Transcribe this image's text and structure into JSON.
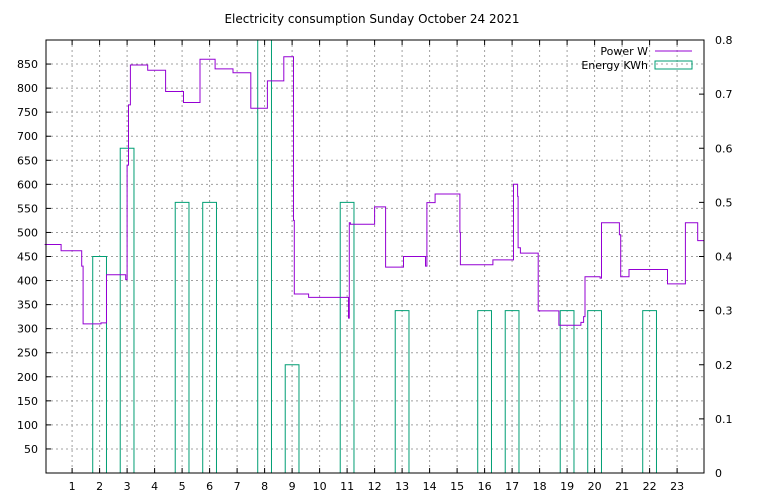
{
  "chart_data": {
    "type": "line",
    "title": "Electricity consumption Sunday October 24 2021",
    "xlabel": "",
    "ylabel": "",
    "xlim": [
      0,
      23.75
    ],
    "ylim": [
      0,
      900
    ],
    "y2lim": [
      0,
      0.8
    ],
    "x_ticks": [
      1,
      2,
      3,
      4,
      5,
      6,
      7,
      8,
      9,
      10,
      11,
      12,
      13,
      14,
      15,
      16,
      17,
      18,
      19,
      20,
      21,
      22,
      23
    ],
    "y_ticks": [
      50,
      100,
      150,
      200,
      250,
      300,
      350,
      400,
      450,
      500,
      550,
      600,
      650,
      700,
      750,
      800,
      850
    ],
    "y2_ticks": [
      0,
      0.1,
      0.2,
      0.3,
      0.4,
      0.5,
      0.6,
      0.7,
      0.8
    ],
    "grid": true,
    "legend_position": "top-right",
    "series": [
      {
        "name": "Power W",
        "type": "step-line",
        "axis": "left",
        "color": "#9400d3",
        "points": [
          [
            0,
            475
          ],
          [
            0.6,
            475
          ],
          [
            0.6,
            462
          ],
          [
            1.35,
            462
          ],
          [
            1.35,
            430
          ],
          [
            1.4,
            430
          ],
          [
            1.4,
            310
          ],
          [
            2.05,
            310
          ],
          [
            2.05,
            312
          ],
          [
            2.25,
            312
          ],
          [
            2.25,
            412
          ],
          [
            2.95,
            412
          ],
          [
            2.95,
            402
          ],
          [
            3.0,
            402
          ],
          [
            3.0,
            640
          ],
          [
            3.05,
            640
          ],
          [
            3.05,
            765
          ],
          [
            3.12,
            765
          ],
          [
            3.12,
            848
          ],
          [
            3.75,
            848
          ],
          [
            3.75,
            837
          ],
          [
            4.4,
            837
          ],
          [
            4.4,
            793
          ],
          [
            5.05,
            793
          ],
          [
            5.05,
            770
          ],
          [
            5.65,
            770
          ],
          [
            5.65,
            860
          ],
          [
            6.2,
            860
          ],
          [
            6.2,
            840
          ],
          [
            6.85,
            840
          ],
          [
            6.85,
            832
          ],
          [
            7.5,
            832
          ],
          [
            7.5,
            758
          ],
          [
            8.1,
            758
          ],
          [
            8.1,
            815
          ],
          [
            8.7,
            815
          ],
          [
            8.7,
            865
          ],
          [
            9.05,
            865
          ],
          [
            9.05,
            525
          ],
          [
            9.08,
            525
          ],
          [
            9.08,
            372
          ],
          [
            9.6,
            372
          ],
          [
            9.6,
            365
          ],
          [
            11.05,
            365
          ],
          [
            11.05,
            322
          ],
          [
            11.08,
            322
          ],
          [
            11.08,
            520
          ],
          [
            11.12,
            520
          ],
          [
            11.12,
            517
          ],
          [
            12.0,
            517
          ],
          [
            12.0,
            553
          ],
          [
            12.4,
            553
          ],
          [
            12.4,
            428
          ],
          [
            13.05,
            428
          ],
          [
            13.05,
            450
          ],
          [
            13.85,
            450
          ],
          [
            13.85,
            430
          ],
          [
            13.9,
            430
          ],
          [
            13.9,
            562
          ],
          [
            14.2,
            562
          ],
          [
            14.2,
            580
          ],
          [
            15.1,
            580
          ],
          [
            15.1,
            500
          ],
          [
            15.12,
            500
          ],
          [
            15.12,
            433
          ],
          [
            16.3,
            433
          ],
          [
            16.3,
            443
          ],
          [
            17.05,
            443
          ],
          [
            17.05,
            600
          ],
          [
            17.2,
            600
          ],
          [
            17.2,
            575
          ],
          [
            17.22,
            575
          ],
          [
            17.22,
            468
          ],
          [
            17.3,
            468
          ],
          [
            17.3,
            457
          ],
          [
            17.95,
            457
          ],
          [
            17.95,
            337
          ],
          [
            18.7,
            337
          ],
          [
            18.7,
            307
          ],
          [
            19.5,
            307
          ],
          [
            19.5,
            313
          ],
          [
            19.6,
            313
          ],
          [
            19.6,
            325
          ],
          [
            19.65,
            325
          ],
          [
            19.65,
            408
          ],
          [
            20.2,
            408
          ],
          [
            20.2,
            405
          ],
          [
            20.25,
            405
          ],
          [
            20.25,
            520
          ],
          [
            20.9,
            520
          ],
          [
            20.9,
            495
          ],
          [
            20.95,
            495
          ],
          [
            20.95,
            408
          ],
          [
            21.25,
            408
          ],
          [
            21.25,
            423
          ],
          [
            22.65,
            423
          ],
          [
            22.65,
            393
          ],
          [
            23.3,
            393
          ],
          [
            23.3,
            520
          ],
          [
            23.75,
            520
          ],
          [
            23.75,
            483
          ],
          [
            24.4,
            483
          ]
        ]
      },
      {
        "name": "Energy KWh",
        "type": "bar",
        "axis": "right",
        "color": "#009e73",
        "bar_width": 0.5,
        "bars": [
          {
            "x": 1.75,
            "value": 0.4
          },
          {
            "x": 2.75,
            "value": 0.6
          },
          {
            "x": 4.75,
            "value": 0.5
          },
          {
            "x": 5.75,
            "value": 0.5
          },
          {
            "x": 7.75,
            "value": 0.8
          },
          {
            "x": 8.75,
            "value": 0.2
          },
          {
            "x": 10.75,
            "value": 0.5
          },
          {
            "x": 12.75,
            "value": 0.3
          },
          {
            "x": 15.75,
            "value": 0.3
          },
          {
            "x": 16.75,
            "value": 0.3
          },
          {
            "x": 18.75,
            "value": 0.3
          },
          {
            "x": 19.75,
            "value": 0.3
          },
          {
            "x": 21.75,
            "value": 0.3
          }
        ]
      }
    ]
  }
}
